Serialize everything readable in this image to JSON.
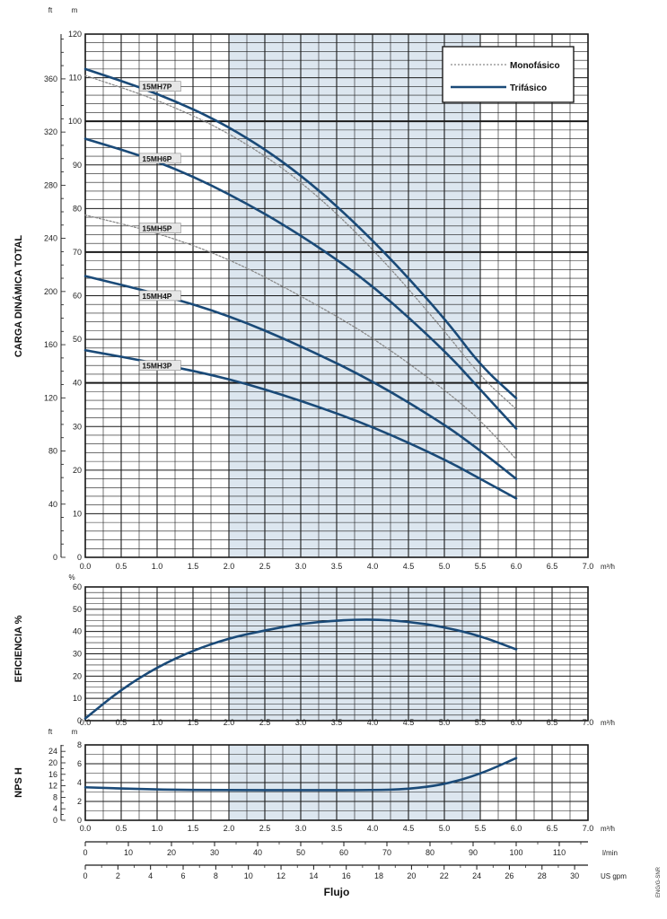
{
  "colors": {
    "curve": "#1a4a78",
    "shade": "#dce6ef",
    "grid": "#1a1a1a",
    "dotted": "#8a8a8a"
  },
  "chart_data": [
    {
      "name": "head",
      "type": "line",
      "xlabel": "",
      "ylabel": "CARGA DINÁMICA TOTAL",
      "x_unit": "m³/h",
      "left_unit": "ft",
      "right_unit": "m",
      "xlim": [
        0,
        7
      ],
      "ylim": [
        0,
        120
      ],
      "x_ticks": [
        "0.0",
        "0.5",
        "1.0",
        "1.5",
        "2.0",
        "2.5",
        "3.0",
        "3.5",
        "4.0",
        "4.5",
        "5.0",
        "5.5",
        "6.0",
        "6.5",
        "7.0"
      ],
      "y_ticks": [
        "0",
        "10",
        "20",
        "30",
        "40",
        "50",
        "60",
        "70",
        "80",
        "90",
        "100",
        "110",
        "120"
      ],
      "ft_ticks": [
        "0",
        "40",
        "80",
        "120",
        "160",
        "200",
        "240",
        "280",
        "320",
        "360"
      ],
      "shaded_range": [
        2.0,
        5.5
      ],
      "legend": [
        {
          "label": "Monofásico",
          "style": "dotted"
        },
        {
          "label": "Trifásico",
          "style": "solid"
        }
      ],
      "series": [
        {
          "name": "15MH7P",
          "style": "solid",
          "label_at": [
            0.78,
            107.5
          ],
          "points": [
            [
              0,
              112
            ],
            [
              1,
              106.5
            ],
            [
              2,
              99
            ],
            [
              3,
              88
            ],
            [
              4,
              73
            ],
            [
              5,
              55
            ],
            [
              5.5,
              44
            ],
            [
              6,
              36.5
            ]
          ]
        },
        {
          "name": "15MH7P mono",
          "style": "dotted",
          "points": [
            [
              0,
              110.5
            ],
            [
              1,
              105
            ],
            [
              2,
              97.5
            ],
            [
              3,
              86.5
            ],
            [
              4,
              71
            ],
            [
              5,
              52
            ],
            [
              5.5,
              41.5
            ],
            [
              6,
              34
            ]
          ]
        },
        {
          "name": "15MH6P",
          "style": "solid",
          "label_at": [
            0.78,
            91
          ],
          "points": [
            [
              0,
              96
            ],
            [
              1,
              91
            ],
            [
              2,
              83.5
            ],
            [
              3,
              74
            ],
            [
              4,
              62.5
            ],
            [
              5,
              47.5
            ],
            [
              5.5,
              38.5
            ],
            [
              6,
              29.5
            ]
          ]
        },
        {
          "name": "15MH5P",
          "style": "dotted",
          "label_at": [
            0.78,
            75
          ],
          "points": [
            [
              0,
              78.5
            ],
            [
              1,
              74.5
            ],
            [
              2,
              68.5
            ],
            [
              3,
              60
            ],
            [
              4,
              50.5
            ],
            [
              5,
              38.5
            ],
            [
              5.5,
              31.5
            ],
            [
              6,
              22.5
            ]
          ]
        },
        {
          "name": "15MH4P",
          "style": "solid",
          "label_at": [
            0.78,
            59.5
          ],
          "points": [
            [
              0,
              64.5
            ],
            [
              1,
              60.5
            ],
            [
              2,
              55.5
            ],
            [
              3,
              48.5
            ],
            [
              4,
              40.5
            ],
            [
              5,
              30.5
            ],
            [
              5.5,
              24.5
            ],
            [
              6,
              18
            ]
          ]
        },
        {
          "name": "15MH3P",
          "style": "solid",
          "label_at": [
            0.78,
            43.5
          ],
          "points": [
            [
              0,
              47.5
            ],
            [
              1,
              44.5
            ],
            [
              2,
              41
            ],
            [
              3,
              36
            ],
            [
              4,
              30
            ],
            [
              5,
              22.5
            ],
            [
              5.5,
              18
            ],
            [
              6,
              13.5
            ]
          ]
        }
      ]
    },
    {
      "name": "efficiency",
      "type": "line",
      "ylabel": "EFICIENCIA %",
      "x_unit": "m³/h",
      "left_unit": "%",
      "xlim": [
        0,
        7
      ],
      "ylim": [
        0,
        60
      ],
      "x_ticks": [
        "0.0",
        "0.5",
        "1.0",
        "1.5",
        "2.0",
        "2.5",
        "3.0",
        "3.5",
        "4.0",
        "4.5",
        "5.0",
        "5.5",
        "6.0",
        "6.5",
        "7.0"
      ],
      "y_ticks": [
        "0",
        "10",
        "20",
        "30",
        "40",
        "50",
        "60"
      ],
      "shaded_range": [
        2.0,
        5.5
      ],
      "series": [
        {
          "name": "Eficiencia",
          "style": "solid",
          "points": [
            [
              0,
              1
            ],
            [
              0.5,
              14
            ],
            [
              1,
              24
            ],
            [
              1.5,
              31.5
            ],
            [
              2,
              37
            ],
            [
              2.5,
              40.5
            ],
            [
              3,
              43.5
            ],
            [
              3.5,
              45
            ],
            [
              4,
              45.5
            ],
            [
              4.5,
              44.5
            ],
            [
              5,
              42
            ],
            [
              5.5,
              38
            ],
            [
              6,
              32
            ]
          ]
        }
      ]
    },
    {
      "name": "npsh",
      "type": "line",
      "ylabel": "NPS H",
      "x_unit": "m³/h",
      "left_unit": "ft",
      "right_unit": "m",
      "xlim": [
        0,
        7
      ],
      "ylim": [
        0,
        8
      ],
      "x_ticks": [
        "0.0",
        "0.5",
        "1.0",
        "1.5",
        "2.0",
        "2.5",
        "3.0",
        "3.5",
        "4.0",
        "4.5",
        "5.0",
        "5.5",
        "6.0",
        "6.5",
        "7.0"
      ],
      "y_ticks": [
        "0",
        "2",
        "4",
        "6",
        "8"
      ],
      "ft_ticks": [
        "0",
        "4",
        "8",
        "12",
        "16",
        "20",
        "24"
      ],
      "shaded_range": [
        2.0,
        5.5
      ],
      "series": [
        {
          "name": "NPSH",
          "style": "solid",
          "points": [
            [
              0,
              3.5
            ],
            [
              1,
              3.25
            ],
            [
              2,
              3.2
            ],
            [
              3,
              3.2
            ],
            [
              4,
              3.2
            ],
            [
              4.5,
              3.3
            ],
            [
              5,
              3.8
            ],
            [
              5.5,
              4.9
            ],
            [
              6,
              6.6
            ]
          ]
        }
      ]
    },
    {
      "name": "flow_scales",
      "xlabel": "Flujo",
      "lmin_unit": "l/min",
      "lmin_ticks": [
        "0",
        "10",
        "20",
        "30",
        "40",
        "50",
        "60",
        "70",
        "80",
        "90",
        "100",
        "110"
      ],
      "gpm_unit": "US gpm",
      "gpm_ticks": [
        "0",
        "2",
        "4",
        "6",
        "8",
        "10",
        "12",
        "14",
        "16",
        "18",
        "20",
        "22",
        "24",
        "26",
        "28",
        "30"
      ]
    }
  ],
  "side_code": "ENG/G-SNR"
}
